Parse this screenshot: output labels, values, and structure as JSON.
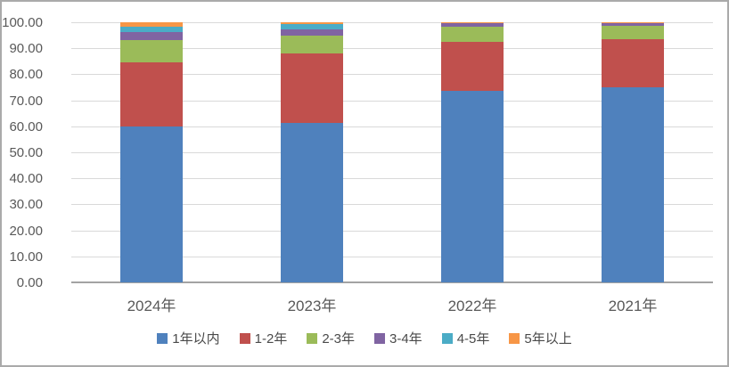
{
  "chart_data": {
    "type": "bar",
    "variant": "stacked-100-percent",
    "title": "",
    "xlabel": "",
    "ylabel": "",
    "categories": [
      "2024年",
      "2023年",
      "2022年",
      "2021年"
    ],
    "series": [
      {
        "name": "1年以内",
        "color": "#4F81BD",
        "values": [
          59.9,
          61.3,
          73.7,
          74.9
        ]
      },
      {
        "name": "1-2年",
        "color": "#C0504D",
        "values": [
          24.6,
          26.6,
          18.7,
          18.6
        ]
      },
      {
        "name": "2-3年",
        "color": "#9BBB59",
        "values": [
          8.7,
          7.1,
          5.9,
          5.1
        ]
      },
      {
        "name": "3-4年",
        "color": "#8064A2",
        "values": [
          3.0,
          2.4,
          1.2,
          0.9
        ]
      },
      {
        "name": "4-5年",
        "color": "#4BACC6",
        "values": [
          2.0,
          2.1,
          0.3,
          0.1
        ]
      },
      {
        "name": "5年以上",
        "color": "#F79646",
        "values": [
          1.8,
          0.5,
          0.2,
          0.4
        ]
      }
    ],
    "ylim": [
      0,
      100
    ],
    "ytick_step": 10,
    "ytick_labels": [
      "0.00",
      "10.00",
      "20.00",
      "30.00",
      "40.00",
      "50.00",
      "60.00",
      "70.00",
      "80.00",
      "90.00",
      "100.00"
    ],
    "grid": true,
    "legend_position": "bottom"
  },
  "colors": {
    "gridline": "#d9d9d9",
    "axis_line": "#a3a3a3",
    "tick_text": "#595959",
    "legend_text": "#4a4a4a",
    "frame_border": "#aaaaaa",
    "background": "#ffffff"
  }
}
